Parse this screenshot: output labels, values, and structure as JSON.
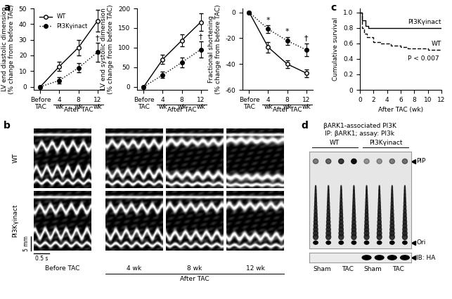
{
  "panel_labels": [
    "a",
    "b",
    "c",
    "d"
  ],
  "chart_data": [
    {
      "type": "line",
      "ylabel": "LV end diastolic dimension\n(% change from before TAC)",
      "categories": [
        "Before TAC",
        "4 wk",
        "8 wk",
        "12 wk"
      ],
      "x_group_label": "After TAC",
      "x_group_categories": [
        "4 wk",
        "8 wk",
        "12 wk"
      ],
      "ylim": [
        -2,
        50
      ],
      "yticks": [
        0,
        10,
        20,
        30,
        40,
        50
      ],
      "legend": "upper left",
      "series": [
        {
          "name": "WT",
          "color": "#000000",
          "marker": "open_circle",
          "line_style": "solid",
          "values": [
            0,
            13,
            25,
            42
          ],
          "errors": [
            0,
            3,
            5,
            7
          ]
        },
        {
          "name": "PI3Kγinact",
          "color": "#000000",
          "marker": "circle",
          "line_style": "dotted",
          "values": [
            0,
            4,
            12,
            22
          ],
          "errors": [
            0,
            2,
            3,
            6
          ]
        }
      ],
      "annotations": [
        {
          "text": "†",
          "series": "PI3Kγinact",
          "category": "12 wk"
        }
      ]
    },
    {
      "type": "line",
      "ylabel": "LV end systolic dimension\n(% change from before TAC)",
      "categories": [
        "Before TAC",
        "4 wk",
        "8 wk",
        "12 wk"
      ],
      "x_group_label": "After TAC",
      "x_group_categories": [
        "4 wk",
        "8 wk",
        "12 wk"
      ],
      "ylim": [
        -8,
        200
      ],
      "yticks": [
        0,
        50,
        100,
        150,
        200
      ],
      "series": [
        {
          "name": "WT",
          "color": "#000000",
          "marker": "open_circle",
          "line_style": "solid",
          "values": [
            0,
            70,
            118,
            165
          ],
          "errors": [
            0,
            12,
            15,
            22
          ]
        },
        {
          "name": "PI3Kγinact",
          "color": "#000000",
          "marker": "circle",
          "line_style": "dotted",
          "values": [
            0,
            30,
            62,
            95
          ],
          "errors": [
            0,
            8,
            12,
            20
          ]
        }
      ],
      "annotations": [
        {
          "text": "†",
          "series": "PI3Kγinact",
          "category": "12 wk"
        }
      ]
    },
    {
      "type": "line",
      "ylabel": "Fractional shortening\n(% change from before TAC)",
      "categories": [
        "Before TAC",
        "4 wk",
        "8 wk",
        "12 wk"
      ],
      "x_group_label": "After TAC",
      "x_group_categories": [
        "4 wk",
        "8 wk",
        "12 wk"
      ],
      "ylim": [
        -60,
        3
      ],
      "yticks": [
        -60,
        -40,
        -20,
        0
      ],
      "series": [
        {
          "name": "WT",
          "color": "#000000",
          "marker": "open_circle",
          "line_style": "solid",
          "values": [
            0,
            -27,
            -40,
            -47
          ],
          "errors": [
            0,
            4,
            3,
            3
          ]
        },
        {
          "name": "PI3Kγinact",
          "color": "#000000",
          "marker": "circle",
          "line_style": "dotted",
          "values": [
            0,
            -13,
            -22,
            -29
          ],
          "errors": [
            0,
            3,
            3,
            5
          ]
        }
      ],
      "annotations": [
        {
          "text": "*",
          "series": "PI3Kγinact",
          "category": "4 wk"
        },
        {
          "text": "*",
          "series": "PI3Kγinact",
          "category": "8 wk"
        },
        {
          "text": "†",
          "series": "PI3Kγinact",
          "category": "12 wk"
        }
      ]
    },
    {
      "type": "step",
      "xlabel": "After TAC (wk)",
      "ylabel": "Cumulative survival",
      "xlim": [
        0,
        12
      ],
      "xticks": [
        0,
        2,
        4,
        6,
        8,
        10,
        12
      ],
      "ylim": [
        0,
        1.05
      ],
      "yticks": [
        0,
        0.2,
        0.4,
        0.6,
        0.8,
        1.0
      ],
      "series": [
        {
          "name": "PI3Kγinact",
          "color": "#000000",
          "line_style": "solid",
          "x": [
            0,
            0.3,
            0.8,
            1.2,
            12
          ],
          "values": [
            1.0,
            0.9,
            0.82,
            0.8,
            0.8
          ]
        },
        {
          "name": "WT",
          "color": "#000000",
          "line_style": "dashed",
          "x": [
            0,
            0.3,
            0.6,
            1.0,
            2.0,
            3.0,
            4.5,
            6.0,
            7.0,
            10.0,
            12
          ],
          "values": [
            1.0,
            0.8,
            0.72,
            0.68,
            0.62,
            0.6,
            0.57,
            0.55,
            0.53,
            0.52,
            0.52
          ]
        }
      ],
      "annotations": [
        {
          "text": "P < 0.007"
        }
      ]
    }
  ],
  "echo_images": {
    "row_labels": [
      "WT",
      "PI3Kγinact"
    ],
    "column_labels": [
      "Before TAC",
      "4 wk",
      "8 wk",
      "12 wk"
    ],
    "group_label": "After TAC",
    "group_columns": [
      "4 wk",
      "8 wk",
      "12 wk"
    ],
    "scale_labels": [
      "5 mm",
      "0.5 s"
    ]
  },
  "blot": {
    "title": "βARK1-associated PI3K",
    "subtitle": "IP: βARK1; assay: PI3k",
    "groups": [
      "WT",
      "PI3Kγinact"
    ],
    "conditions": [
      "Sham",
      "TAC",
      "Sham",
      "TAC"
    ],
    "band_labels": [
      "PIP",
      "Ori"
    ],
    "ib_label": "IB: HA"
  }
}
